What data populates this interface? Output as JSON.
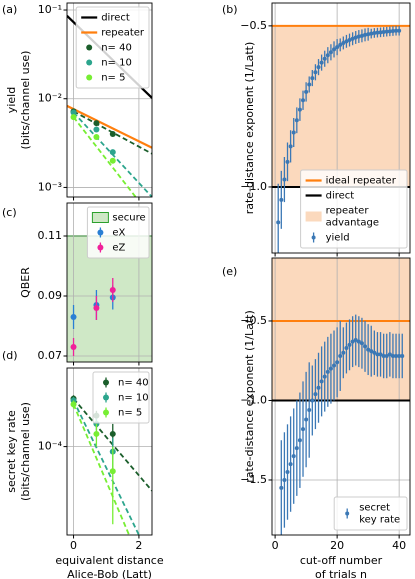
{
  "chart_data": [
    {
      "type": "line",
      "label": "(a)",
      "ylabel": [
        "yield",
        "(bits/channel use)"
      ],
      "xlim": [
        -0.2,
        2.4
      ],
      "ylim": [
        0.00078,
        0.12
      ],
      "log_y": true,
      "grid": true,
      "xticks": [
        0,
        2
      ],
      "show_xtick_labels": false,
      "yticks": [
        {
          "value": 0.001,
          "label": "10⁻³"
        },
        {
          "value": 0.01,
          "label": "10⁻²"
        },
        {
          "value": 0.1,
          "label": "10⁻¹"
        }
      ],
      "legend": "upper right",
      "lines": [
        {
          "name": "direct",
          "color": "#000000",
          "x": [
            -0.2,
            2.4
          ],
          "values": [
            0.086,
            0.0102
          ]
        },
        {
          "name": "repeater",
          "color": "#ff7f0e",
          "x": [
            -0.2,
            2.4
          ],
          "values": [
            0.0083,
            0.0028
          ]
        }
      ],
      "series": [
        {
          "name": "n= 40",
          "color": "#1b5e2b",
          "x": [
            0,
            0.7,
            1.2
          ],
          "values": [
            0.0072,
            0.0053,
            0.004
          ],
          "fit_x": [
            0,
            2.4
          ],
          "fit_values": [
            0.0072,
            0.0024
          ]
        },
        {
          "name": "n= 10",
          "color": "#2ca58d",
          "x": [
            0,
            0.7,
            1.2
          ],
          "values": [
            0.007,
            0.0045,
            0.0025
          ],
          "fit_x": [
            0,
            2.4
          ],
          "fit_values": [
            0.007,
            0.00078
          ]
        },
        {
          "name": "n= 5",
          "color": "#77ee33",
          "x": [
            0,
            0.7,
            1.2
          ],
          "values": [
            0.0062,
            0.0037,
            0.002
          ],
          "fit_x": [
            0,
            1.9
          ],
          "fit_values": [
            0.0062,
            0.00078
          ]
        }
      ]
    },
    {
      "type": "errorbar",
      "label": "(b)",
      "ylabel": [
        "rate-distance exponent (1/Latt)"
      ],
      "xlim": [
        -1,
        43.5
      ],
      "ylim": [
        -1.205,
        -0.429
      ],
      "grid": true,
      "xticks": [
        0,
        20,
        40
      ],
      "show_xtick_labels": false,
      "yticks": [
        {
          "value": -0.5,
          "label": "−0.5"
        },
        {
          "value": -1.0,
          "label": "−1.0"
        }
      ],
      "legend": "lower right",
      "hlines": [
        {
          "name": "ideal repeater",
          "color": "#ff7f0e",
          "value": -0.5
        },
        {
          "name": "direct",
          "color": "#000000",
          "value": -1.0
        }
      ],
      "region": {
        "name": [
          "repeater",
          "advantage"
        ],
        "color": "#fbd9bd",
        "from": -1.0,
        "to": -0.5
      },
      "series": [
        {
          "name": "yield",
          "color": "#3b78b5",
          "x": [
            1,
            2,
            3,
            4,
            5,
            6,
            7,
            8,
            9,
            10,
            11,
            12,
            13,
            14,
            15,
            16,
            17,
            18,
            19,
            20,
            21,
            22,
            23,
            24,
            25,
            26,
            27,
            28,
            29,
            30,
            31,
            32,
            33,
            34,
            35,
            36,
            37,
            38,
            39,
            40
          ],
          "values": [
            -1.11,
            -1.04,
            -0.977,
            -0.922,
            -0.874,
            -0.831,
            -0.793,
            -0.76,
            -0.731,
            -0.705,
            -0.682,
            -0.662,
            -0.644,
            -0.628,
            -0.614,
            -0.602,
            -0.591,
            -0.582,
            -0.573,
            -0.566,
            -0.559,
            -0.553,
            -0.548,
            -0.544,
            -0.54,
            -0.536,
            -0.533,
            -0.531,
            -0.528,
            -0.526,
            -0.524,
            -0.522,
            -0.521,
            -0.52,
            -0.519,
            -0.518,
            -0.517,
            -0.516,
            -0.515,
            -0.515
          ],
          "errors": [
            0.12,
            0.09,
            0.07,
            0.06,
            0.05,
            0.045,
            0.04,
            0.035,
            0.03,
            0.03,
            0.025,
            0.025,
            0.025,
            0.025,
            0.025,
            0.025,
            0.025,
            0.025,
            0.025,
            0.025,
            0.02,
            0.02,
            0.02,
            0.02,
            0.02,
            0.02,
            0.02,
            0.02,
            0.02,
            0.02,
            0.015,
            0.015,
            0.015,
            0.015,
            0.015,
            0.015,
            0.015,
            0.015,
            0.015,
            0.015
          ]
        }
      ]
    },
    {
      "type": "errorbar",
      "label": "(c)",
      "ylabel": [
        "QBER"
      ],
      "xlim": [
        -0.2,
        2.4
      ],
      "ylim": [
        0.068,
        0.121
      ],
      "grid": true,
      "xticks": [
        0,
        2
      ],
      "show_xtick_labels": false,
      "yticks": [
        0.07,
        0.09,
        0.11
      ],
      "legend": "upper right",
      "region": {
        "name": "secure",
        "color": "#cfe8c6",
        "edge_color": "#2ca02c",
        "to": 0.11
      },
      "series": [
        {
          "name": "eX",
          "color": "#2a7fd4",
          "x": [
            0,
            0.7,
            1.2
          ],
          "values": [
            0.083,
            0.087,
            0.0895
          ],
          "errors": [
            0.004,
            0.005,
            0.004
          ]
        },
        {
          "name": "eZ",
          "color": "#f0219a",
          "x": [
            0,
            0.7,
            1.2
          ],
          "values": [
            0.073,
            0.086,
            0.092
          ],
          "errors": [
            0.003,
            0.004,
            0.004
          ]
        }
      ]
    },
    {
      "type": "line",
      "label": "(d)",
      "ylabel": [
        "secret key rate",
        "(bits/channel use)"
      ],
      "xlabel": [
        "equivalent distance",
        "Alice-Bob (Latt)"
      ],
      "xlim": [
        -0.2,
        2.4
      ],
      "ylim": [
        1.6e-05,
        0.00051
      ],
      "log_y": true,
      "grid": true,
      "xticks": [
        0,
        2
      ],
      "show_xtick_labels": true,
      "yticks": [
        {
          "value": 0.0001,
          "label": "10⁻⁴"
        }
      ],
      "legend": "upper right",
      "series": [
        {
          "name": "n= 40",
          "color": "#1b5e2b",
          "x": [
            0,
            0.7,
            1.2
          ],
          "values": [
            0.00027,
            0.00019,
            0.00013
          ],
          "errors": [
            2e-05,
            2e-05,
            3e-05
          ],
          "fit_x": [
            0,
            2.4
          ],
          "fit_values": [
            0.00027,
            4e-05
          ]
        },
        {
          "name": "n= 10",
          "color": "#2ca58d",
          "x": [
            0,
            0.7,
            1.2
          ],
          "values": [
            0.00026,
            0.00016,
            9e-05
          ],
          "errors": [
            2e-05,
            2e-05,
            3e-05
          ],
          "fit_x": [
            0,
            2.0
          ],
          "fit_values": [
            0.00026,
            1.6e-05
          ]
        },
        {
          "name": "n= 5",
          "color": "#77ee33",
          "x": [
            0,
            0.7,
            1.2
          ],
          "values": [
            0.00024,
            0.00013,
            6e-05
          ],
          "errors": [
            2e-05,
            3e-05,
            4e-05
          ],
          "fit_x": [
            0,
            1.7
          ],
          "fit_values": [
            0.00024,
            1.6e-05
          ]
        }
      ]
    },
    {
      "type": "errorbar",
      "label": "(e)",
      "ylabel": [
        "rate-distance exponent (1/Latt)"
      ],
      "xlabel": [
        "cut-off number",
        "of trials n"
      ],
      "xlim": [
        -1,
        43.5
      ],
      "ylim": [
        -1.846,
        -0.104
      ],
      "grid": true,
      "xticks": [
        0,
        20,
        40
      ],
      "show_xtick_labels": true,
      "yticks": [
        {
          "value": -0.5,
          "label": "−0.5"
        },
        {
          "value": -1.0,
          "label": "−1.0"
        },
        {
          "value": -1.5,
          "label": "−1.5"
        }
      ],
      "legend": "lower right",
      "hlines": [
        {
          "color": "#ff7f0e",
          "value": -0.5
        },
        {
          "color": "#000000",
          "value": -1.0
        }
      ],
      "region": {
        "color": "#fbd9bd",
        "from": -1.0
      },
      "series": [
        {
          "name": [
            "secret",
            "key rate"
          ],
          "color": "#3b78b5",
          "x": [
            2,
            3,
            4,
            5,
            6,
            7,
            8,
            9,
            10,
            11,
            12,
            13,
            14,
            15,
            16,
            17,
            18,
            19,
            20,
            21,
            22,
            23,
            24,
            25,
            26,
            27,
            28,
            29,
            30,
            31,
            32,
            33,
            34,
            35,
            36,
            37,
            38,
            39,
            40,
            41
          ],
          "values": [
            -1.55,
            -1.5,
            -1.45,
            -1.4,
            -1.35,
            -1.3,
            -1.25,
            -1.18,
            -1.12,
            -1.06,
            -1.0,
            -0.96,
            -0.92,
            -0.88,
            -0.85,
            -0.82,
            -0.8,
            -0.78,
            -0.76,
            -0.72,
            -0.7,
            -0.67,
            -0.65,
            -0.63,
            -0.62,
            -0.63,
            -0.64,
            -0.66,
            -0.68,
            -0.69,
            -0.7,
            -0.71,
            -0.71,
            -0.72,
            -0.72,
            -0.71,
            -0.72,
            -0.72,
            -0.72,
            -0.72
          ],
          "errors": [
            0.3,
            0.3,
            0.3,
            0.3,
            0.3,
            0.3,
            0.3,
            0.3,
            0.3,
            0.3,
            0.22,
            0.22,
            0.22,
            0.22,
            0.22,
            0.22,
            0.22,
            0.22,
            0.22,
            0.22,
            0.16,
            0.16,
            0.16,
            0.16,
            0.16,
            0.16,
            0.16,
            0.16,
            0.16,
            0.16,
            0.14,
            0.14,
            0.14,
            0.14,
            0.14,
            0.14,
            0.14,
            0.14,
            0.14,
            0.14
          ]
        }
      ]
    }
  ]
}
